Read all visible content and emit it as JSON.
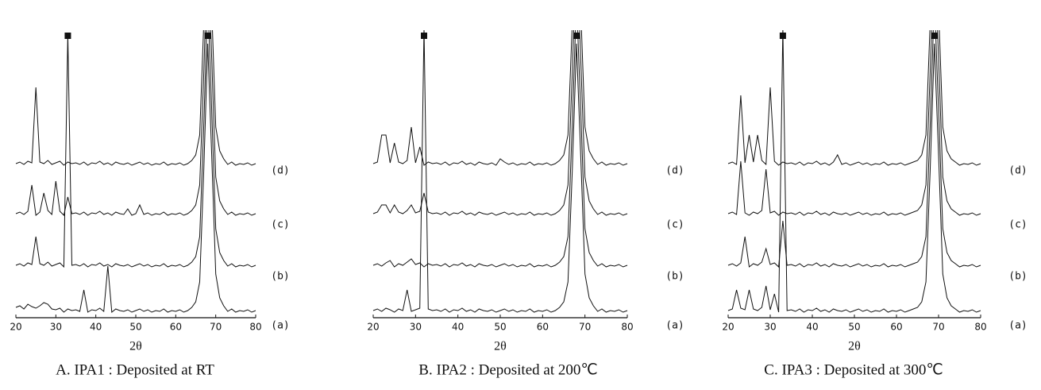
{
  "chart_data": [
    {
      "type": "line",
      "title": "A. IPA1 : Deposited at RT",
      "x_label": "2θ",
      "xlim": [
        20,
        80
      ],
      "xticks": [
        20,
        30,
        40,
        50,
        60,
        70,
        80
      ],
      "peak_markers": [
        33,
        68
      ],
      "color": "#111111",
      "x": [
        20,
        21,
        22,
        23,
        24,
        25,
        26,
        27,
        28,
        29,
        30,
        31,
        32,
        33,
        34,
        35,
        36,
        37,
        38,
        39,
        40,
        41,
        42,
        43,
        44,
        45,
        46,
        47,
        48,
        49,
        50,
        51,
        52,
        53,
        54,
        55,
        56,
        57,
        58,
        59,
        60,
        61,
        62,
        63,
        64,
        65,
        66,
        67,
        68,
        69,
        70,
        71,
        72,
        73,
        74,
        75,
        76,
        77,
        78,
        79,
        80
      ],
      "series": [
        {
          "name": "(a)",
          "values": [
            8,
            10,
            6,
            12,
            9,
            7,
            10,
            14,
            12,
            6,
            5,
            7,
            2,
            6,
            4,
            5,
            3,
            30,
            2,
            5,
            4,
            7,
            3,
            60,
            2,
            6,
            4,
            3,
            5,
            2,
            4,
            6,
            3,
            5,
            2,
            4,
            3,
            6,
            2,
            4,
            3,
            5,
            2,
            4,
            8,
            15,
            40,
            180,
            340,
            200,
            50,
            20,
            10,
            3,
            6,
            2,
            4,
            3,
            5,
            2,
            4
          ]
        },
        {
          "name": "(b)",
          "values": [
            4,
            6,
            3,
            7,
            5,
            40,
            6,
            4,
            8,
            3,
            5,
            7,
            2,
            295,
            4,
            5,
            3,
            6,
            2,
            5,
            4,
            7,
            3,
            5,
            2,
            6,
            4,
            3,
            5,
            2,
            4,
            6,
            3,
            5,
            2,
            4,
            3,
            6,
            2,
            4,
            3,
            5,
            2,
            4,
            8,
            15,
            40,
            180,
            340,
            200,
            50,
            20,
            10,
            3,
            6,
            2,
            4,
            3,
            5,
            2,
            4
          ]
        },
        {
          "name": "(c)",
          "values": [
            4,
            6,
            3,
            7,
            40,
            2,
            6,
            30,
            8,
            3,
            45,
            7,
            2,
            25,
            4,
            5,
            3,
            6,
            2,
            5,
            4,
            7,
            3,
            5,
            2,
            6,
            4,
            3,
            10,
            2,
            4,
            15,
            3,
            5,
            2,
            4,
            3,
            6,
            2,
            4,
            3,
            5,
            2,
            4,
            8,
            15,
            40,
            180,
            340,
            200,
            50,
            20,
            10,
            3,
            6,
            2,
            4,
            3,
            5,
            2,
            4
          ]
        },
        {
          "name": "(d)",
          "values": [
            4,
            6,
            3,
            7,
            5,
            100,
            6,
            4,
            8,
            3,
            5,
            7,
            2,
            6,
            4,
            5,
            3,
            6,
            2,
            5,
            4,
            7,
            3,
            5,
            2,
            6,
            4,
            3,
            5,
            2,
            4,
            6,
            3,
            5,
            2,
            4,
            3,
            6,
            2,
            4,
            3,
            5,
            2,
            4,
            8,
            15,
            40,
            180,
            340,
            200,
            50,
            20,
            10,
            3,
            6,
            2,
            4,
            3,
            5,
            2,
            4
          ]
        }
      ]
    },
    {
      "type": "line",
      "title": "B. IPA2 : Deposited at 200℃",
      "x_label": "2θ",
      "xlim": [
        20,
        80
      ],
      "xticks": [
        20,
        30,
        40,
        50,
        60,
        70,
        80
      ],
      "peak_markers": [
        32,
        68
      ],
      "color": "#111111",
      "x": [
        20,
        21,
        22,
        23,
        24,
        25,
        26,
        27,
        28,
        29,
        30,
        31,
        32,
        33,
        34,
        35,
        36,
        37,
        38,
        39,
        40,
        41,
        42,
        43,
        44,
        45,
        46,
        47,
        48,
        49,
        50,
        51,
        52,
        53,
        54,
        55,
        56,
        57,
        58,
        59,
        60,
        61,
        62,
        63,
        64,
        65,
        66,
        67,
        68,
        69,
        70,
        71,
        72,
        73,
        74,
        75,
        76,
        77,
        78,
        79,
        80
      ],
      "series": [
        {
          "name": "(a)",
          "values": [
            4,
            6,
            3,
            7,
            5,
            2,
            6,
            4,
            30,
            3,
            5,
            7,
            360,
            6,
            4,
            5,
            3,
            6,
            2,
            5,
            4,
            7,
            3,
            5,
            2,
            6,
            4,
            3,
            5,
            2,
            4,
            6,
            3,
            5,
            2,
            4,
            3,
            6,
            2,
            4,
            3,
            5,
            2,
            4,
            8,
            15,
            40,
            180,
            340,
            200,
            50,
            20,
            10,
            3,
            6,
            2,
            4,
            3,
            5,
            2,
            4
          ]
        },
        {
          "name": "(b)",
          "values": [
            4,
            6,
            3,
            7,
            10,
            2,
            6,
            4,
            8,
            12,
            5,
            7,
            2,
            6,
            4,
            5,
            3,
            6,
            2,
            5,
            4,
            7,
            3,
            5,
            2,
            6,
            4,
            3,
            5,
            2,
            4,
            6,
            3,
            5,
            2,
            4,
            3,
            6,
            2,
            4,
            3,
            5,
            2,
            4,
            8,
            15,
            40,
            180,
            340,
            200,
            50,
            20,
            10,
            3,
            6,
            2,
            4,
            3,
            5,
            2,
            4
          ]
        },
        {
          "name": "(c)",
          "values": [
            4,
            6,
            15,
            15,
            5,
            15,
            6,
            4,
            8,
            15,
            5,
            7,
            30,
            6,
            4,
            5,
            3,
            6,
            2,
            5,
            4,
            7,
            3,
            5,
            2,
            6,
            4,
            3,
            5,
            2,
            4,
            6,
            3,
            5,
            2,
            4,
            3,
            6,
            2,
            4,
            3,
            5,
            2,
            4,
            8,
            15,
            40,
            180,
            340,
            200,
            50,
            20,
            10,
            3,
            6,
            2,
            4,
            3,
            5,
            2,
            4
          ]
        },
        {
          "name": "(d)",
          "values": [
            4,
            6,
            40,
            40,
            5,
            30,
            6,
            4,
            8,
            50,
            5,
            25,
            2,
            6,
            4,
            5,
            3,
            6,
            2,
            5,
            4,
            7,
            3,
            5,
            2,
            6,
            4,
            3,
            5,
            2,
            10,
            6,
            3,
            5,
            2,
            4,
            3,
            6,
            2,
            4,
            3,
            5,
            2,
            4,
            8,
            15,
            40,
            180,
            340,
            200,
            50,
            20,
            10,
            3,
            6,
            2,
            4,
            3,
            5,
            2,
            4
          ]
        }
      ]
    },
    {
      "type": "line",
      "title": "C. IPA3 : Deposited at 300℃",
      "x_label": "2θ",
      "xlim": [
        20,
        80
      ],
      "xticks": [
        20,
        30,
        40,
        50,
        60,
        70,
        80
      ],
      "peak_markers": [
        33,
        69
      ],
      "color": "#111111",
      "x": [
        20,
        21,
        22,
        23,
        24,
        25,
        26,
        27,
        28,
        29,
        30,
        31,
        32,
        33,
        34,
        35,
        36,
        37,
        38,
        39,
        40,
        41,
        42,
        43,
        44,
        45,
        46,
        47,
        48,
        49,
        50,
        51,
        52,
        53,
        54,
        55,
        56,
        57,
        58,
        59,
        60,
        61,
        62,
        63,
        64,
        65,
        66,
        67,
        68,
        69,
        70,
        71,
        72,
        73,
        74,
        75,
        76,
        77,
        78,
        79,
        80
      ],
      "series": [
        {
          "name": "(a)",
          "values": [
            4,
            6,
            30,
            7,
            5,
            30,
            6,
            4,
            8,
            35,
            5,
            25,
            2,
            360,
            4,
            5,
            3,
            6,
            2,
            5,
            4,
            7,
            3,
            5,
            2,
            6,
            4,
            3,
            5,
            2,
            4,
            6,
            3,
            5,
            2,
            4,
            3,
            6,
            2,
            4,
            3,
            5,
            2,
            4,
            6,
            8,
            15,
            40,
            180,
            340,
            200,
            50,
            20,
            10,
            6,
            2,
            4,
            3,
            5,
            2,
            4
          ]
        },
        {
          "name": "(b)",
          "values": [
            4,
            6,
            3,
            7,
            40,
            2,
            6,
            4,
            8,
            25,
            5,
            7,
            2,
            60,
            4,
            5,
            3,
            6,
            2,
            5,
            4,
            7,
            3,
            5,
            2,
            6,
            4,
            3,
            5,
            2,
            4,
            6,
            3,
            5,
            2,
            4,
            3,
            6,
            2,
            4,
            3,
            5,
            2,
            4,
            6,
            8,
            15,
            40,
            180,
            340,
            200,
            50,
            20,
            10,
            6,
            2,
            4,
            3,
            5,
            2,
            4
          ]
        },
        {
          "name": "(c)",
          "values": [
            4,
            6,
            3,
            70,
            5,
            2,
            6,
            4,
            8,
            60,
            5,
            7,
            2,
            6,
            4,
            5,
            3,
            6,
            2,
            5,
            4,
            7,
            3,
            5,
            2,
            6,
            4,
            3,
            5,
            2,
            4,
            6,
            3,
            5,
            2,
            4,
            3,
            6,
            2,
            4,
            3,
            5,
            2,
            4,
            6,
            8,
            15,
            40,
            180,
            340,
            200,
            50,
            20,
            10,
            6,
            2,
            4,
            3,
            5,
            2,
            4
          ]
        },
        {
          "name": "(d)",
          "values": [
            4,
            6,
            3,
            90,
            5,
            40,
            6,
            40,
            8,
            3,
            100,
            7,
            2,
            6,
            4,
            5,
            3,
            6,
            2,
            5,
            4,
            7,
            3,
            5,
            2,
            6,
            15,
            3,
            5,
            2,
            4,
            6,
            3,
            5,
            2,
            4,
            3,
            6,
            2,
            4,
            3,
            5,
            2,
            4,
            6,
            8,
            15,
            40,
            180,
            340,
            200,
            50,
            20,
            10,
            6,
            2,
            4,
            3,
            5,
            2,
            4
          ]
        }
      ]
    }
  ]
}
